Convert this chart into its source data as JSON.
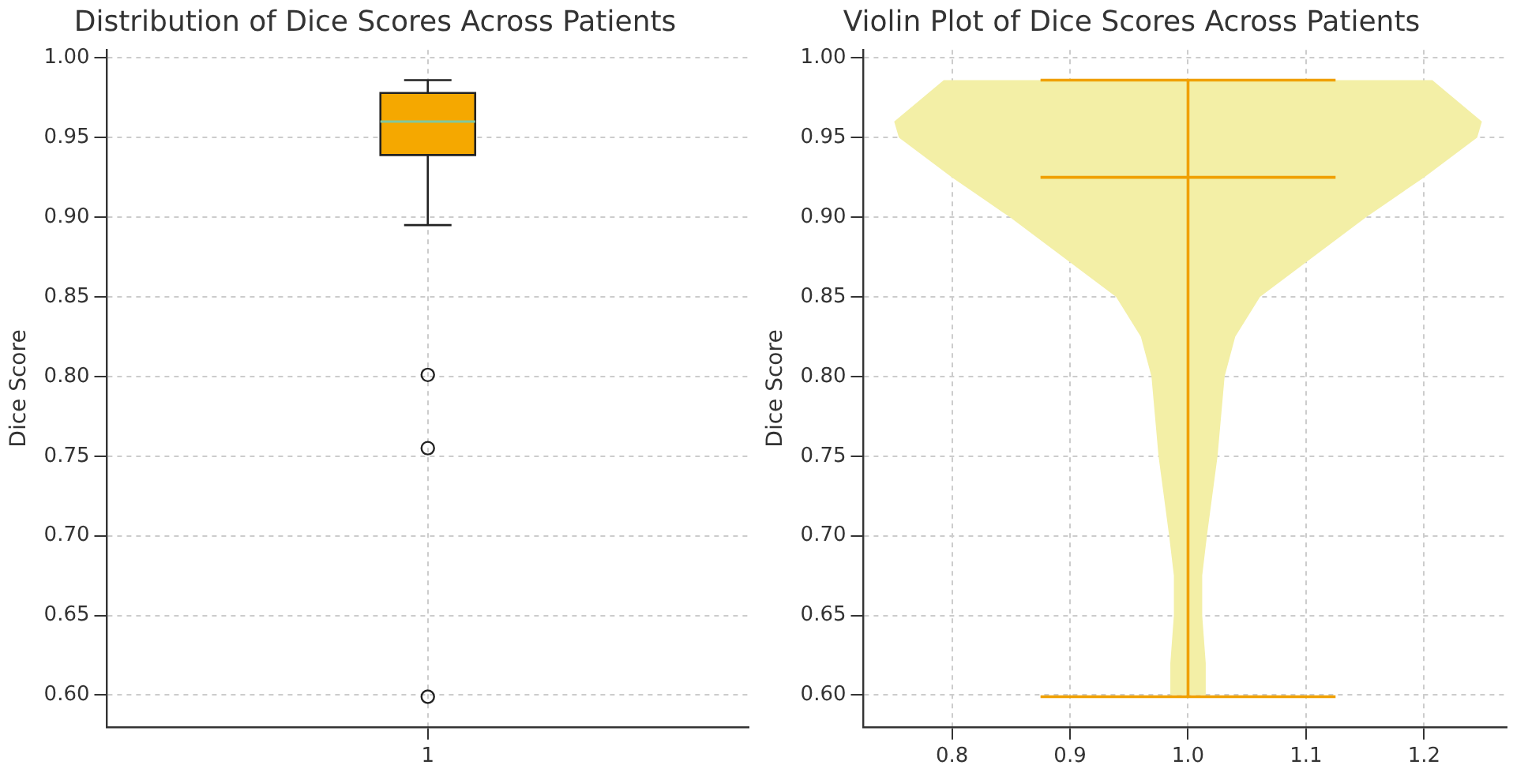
{
  "chart_data": [
    {
      "type": "box",
      "title": "Distribution of Dice Scores Across Patients",
      "ylabel": "Dice Score",
      "categories": [
        "1"
      ],
      "boxes": [
        {
          "low": 0.895,
          "q1": 0.939,
          "median": 0.96,
          "q3": 0.978,
          "high": 0.986,
          "outliers": [
            0.801,
            0.755,
            0.599
          ]
        }
      ],
      "color": "#f5a800",
      "ylim": [
        0.58,
        1.005
      ],
      "yticks": [
        {
          "value": 0.6,
          "label": "0.60"
        },
        {
          "value": 0.65,
          "label": "0.65"
        },
        {
          "value": 0.7,
          "label": "0.70"
        },
        {
          "value": 0.75,
          "label": "0.75"
        },
        {
          "value": 0.8,
          "label": "0.80"
        },
        {
          "value": 0.85,
          "label": "0.85"
        },
        {
          "value": 0.9,
          "label": "0.90"
        },
        {
          "value": 0.95,
          "label": "0.95"
        },
        {
          "value": 1.0,
          "label": "1.00"
        }
      ],
      "grid": true,
      "legend": false
    },
    {
      "type": "line",
      "title": "Violin Plot of Dice Scores Across Patients",
      "ylabel": "Dice Score",
      "series": [
        {
          "type": "area",
          "color": "#f3efa6",
          "x": [
            0.793,
            0.751,
            0.755,
            0.8,
            0.849,
            0.894,
            0.939,
            0.96,
            0.969,
            0.975,
            0.984,
            0.988,
            0.988,
            0.985,
            0.985,
            1.015,
            1.015,
            1.012,
            1.012,
            1.016,
            1.025,
            1.031,
            1.04,
            1.061,
            1.106,
            1.151,
            1.2,
            1.245,
            1.249,
            1.207
          ],
          "values": [
            0.986,
            0.96,
            0.95,
            0.925,
            0.9,
            0.875,
            0.85,
            0.825,
            0.8,
            0.75,
            0.7,
            0.675,
            0.65,
            0.62,
            0.6,
            0.6,
            0.62,
            0.65,
            0.675,
            0.7,
            0.75,
            0.8,
            0.825,
            0.85,
            0.875,
            0.9,
            0.925,
            0.95,
            0.96,
            0.986
          ]
        },
        {
          "type": "line",
          "color": "#f0a000",
          "x": [
            0.875,
            1.125
          ],
          "values": [
            0.986,
            0.986
          ]
        },
        {
          "type": "line",
          "color": "#f0a000",
          "x": [
            0.875,
            1.125
          ],
          "values": [
            0.925,
            0.925
          ]
        },
        {
          "type": "line",
          "color": "#f0a000",
          "x": [
            0.875,
            1.125
          ],
          "values": [
            0.599,
            0.599
          ]
        },
        {
          "type": "line",
          "color": "#f0a000",
          "x": [
            1.0,
            1.0
          ],
          "values": [
            0.599,
            0.986
          ]
        }
      ],
      "xlim": [
        0.725,
        1.27
      ],
      "xticks": [
        0.8,
        0.9,
        {
          "value": 1.0,
          "label": "1.0"
        },
        1.1,
        1.2
      ],
      "ylim": [
        0.58,
        1.005
      ],
      "yticks": [
        {
          "value": 0.6,
          "label": "0.60"
        },
        {
          "value": 0.65,
          "label": "0.65"
        },
        {
          "value": 0.7,
          "label": "0.70"
        },
        {
          "value": 0.75,
          "label": "0.75"
        },
        {
          "value": 0.8,
          "label": "0.80"
        },
        {
          "value": 0.85,
          "label": "0.85"
        },
        {
          "value": 0.9,
          "label": "0.90"
        },
        {
          "value": 0.95,
          "label": "0.95"
        },
        {
          "value": 1.0,
          "label": "1.00"
        }
      ],
      "grid": true,
      "legend": false,
      "marker": "none"
    }
  ]
}
